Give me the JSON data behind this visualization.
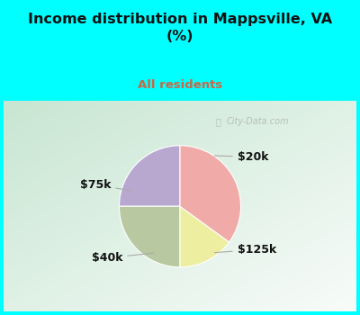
{
  "title": "Income distribution in Mappsville, VA\n(%)",
  "subtitle": "All residents",
  "title_color": "#111111",
  "subtitle_color": "#cc6644",
  "header_bg": "#00ffff",
  "chart_bg_colors": [
    "#e8f5ee",
    "#f8fffe"
  ],
  "slices": [
    {
      "label": "$20k",
      "value": 25,
      "color": "#b8a8d0"
    },
    {
      "label": "$125k",
      "value": 25,
      "color": "#b8c8a0"
    },
    {
      "label": "$40k",
      "value": 15,
      "color": "#eeeea0"
    },
    {
      "label": "$75k",
      "value": 35,
      "color": "#f0aaa8"
    }
  ],
  "watermark": "City-Data.com",
  "startangle": 90,
  "label_color": "#111111",
  "label_fontsize": 9,
  "line_color": "#aaaaaa",
  "figsize": [
    4.0,
    3.5
  ],
  "dpi": 100
}
